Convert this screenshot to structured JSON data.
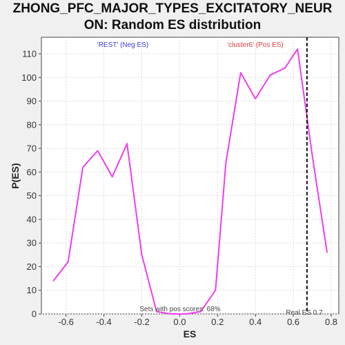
{
  "chart_data": {
    "type": "line",
    "title_lines": [
      "ZHONG_PFC_MAJOR_TYPES_EXCITATORY_NEUR",
      "ON: Random ES distribution"
    ],
    "xlabel": "ES",
    "ylabel": "P(ES)",
    "xlim": [
      -0.73,
      0.84
    ],
    "ylim": [
      0,
      117
    ],
    "x_ticks": [
      -0.6,
      -0.4,
      -0.2,
      0.0,
      0.2,
      0.4,
      0.6,
      0.8
    ],
    "x_tick_labels": [
      "-0.6",
      "-0.4",
      "-0.2",
      "0.0",
      "0.2",
      "0.4",
      "0.6",
      "0.8"
    ],
    "y_ticks": [
      0,
      10,
      20,
      30,
      40,
      50,
      60,
      70,
      80,
      90,
      100,
      110
    ],
    "y_tick_labels": [
      "0",
      "10",
      "20",
      "30",
      "40",
      "50",
      "60",
      "70",
      "80",
      "90",
      "100",
      "110"
    ],
    "grid": true,
    "series": [
      {
        "color": "#f03cf0",
        "x": [
          -0.667,
          -0.589,
          -0.511,
          -0.433,
          -0.356,
          -0.278,
          -0.2,
          -0.122,
          -0.044,
          0.033,
          0.111,
          0.189,
          0.244,
          0.322,
          0.4,
          0.478,
          0.556,
          0.622,
          0.7,
          0.778
        ],
        "y": [
          14,
          22,
          62,
          69,
          58,
          72,
          25,
          1,
          0,
          0,
          1,
          10,
          64,
          102,
          91,
          101,
          104,
          112,
          67,
          26
        ]
      }
    ],
    "real_es": 0.672,
    "legend_neg": "'REST' (Neg ES)",
    "legend_pos": "'cluster6' (Pos ES)",
    "annotation_bottom": "Sets with pos scores: 68%",
    "real_es_label": "Real ES 0.7"
  },
  "colors": {
    "line": "#f03cf0",
    "neg": "#3a3adc",
    "pos": "#e03a3a",
    "grid": "#dcdcdc",
    "panel": "#ffffff",
    "page": "#f0f0f0"
  }
}
